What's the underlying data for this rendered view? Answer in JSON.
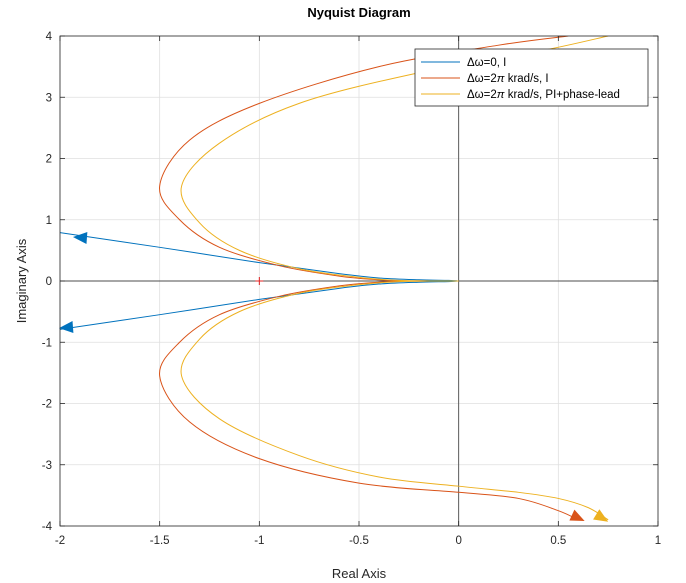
{
  "chart_data": {
    "type": "line",
    "title": "Nyquist Diagram",
    "xlabel": "Real Axis",
    "ylabel": "Imaginary Axis",
    "xlim": [
      -2,
      1
    ],
    "ylim": [
      -4,
      4
    ],
    "grid": true,
    "legend_position": "top-right",
    "x_ticks": [
      "-2",
      "-1.5",
      "-1",
      "-0.5",
      "0",
      "0.5",
      "1"
    ],
    "y_ticks": [
      "-4",
      "-3",
      "-2",
      "-1",
      "0",
      "1",
      "2",
      "3",
      "4"
    ],
    "critical_point": [
      -1,
      0
    ],
    "series": [
      {
        "name_prefix": "Δω=0, I",
        "name_suffix": "",
        "color": "#0072BD",
        "points": [
          [
            -2.0,
            0.79
          ],
          [
            -1.5,
            0.55
          ],
          [
            -1.0,
            0.3
          ],
          [
            -0.6,
            0.12
          ],
          [
            -0.4,
            0.05
          ],
          [
            -0.2,
            0.02
          ],
          [
            -0.05,
            0.01
          ],
          [
            0,
            0
          ],
          [
            -0.05,
            -0.01
          ],
          [
            -0.2,
            -0.02
          ],
          [
            -0.4,
            -0.05
          ],
          [
            -0.6,
            -0.12
          ],
          [
            -1.0,
            -0.3
          ],
          [
            -1.5,
            -0.55
          ],
          [
            -2.0,
            -0.79
          ]
        ],
        "arrows": [
          [
            -1.9,
            0.71
          ],
          [
            -1.97,
            -0.76
          ]
        ]
      },
      {
        "name_prefix": "Δω=2",
        "name_suffix": " krad/s, I",
        "color": "#D95319",
        "points": [
          [
            0.55,
            4.0
          ],
          [
            0.2,
            3.85
          ],
          [
            -0.4,
            3.5
          ],
          [
            -1.0,
            2.9
          ],
          [
            -1.35,
            2.3
          ],
          [
            -1.5,
            1.55
          ],
          [
            -1.4,
            1.0
          ],
          [
            -1.2,
            0.55
          ],
          [
            -0.9,
            0.25
          ],
          [
            -0.6,
            0.08
          ],
          [
            -0.4,
            0.02
          ],
          [
            -0.25,
            0.0
          ],
          [
            -0.1,
            0.0
          ],
          [
            0,
            0
          ],
          [
            -0.1,
            0.0
          ],
          [
            -0.25,
            0.0
          ],
          [
            -0.4,
            -0.02
          ],
          [
            -0.6,
            -0.08
          ],
          [
            -0.9,
            -0.25
          ],
          [
            -1.2,
            -0.55
          ],
          [
            -1.4,
            -1.0
          ],
          [
            -1.5,
            -1.55
          ],
          [
            -1.35,
            -2.3
          ],
          [
            -1.0,
            -2.9
          ],
          [
            -0.5,
            -3.3
          ],
          [
            0.0,
            -3.45
          ],
          [
            0.3,
            -3.55
          ],
          [
            0.5,
            -3.75
          ],
          [
            0.6,
            -3.9
          ]
        ],
        "arrows": [
          [
            0.6,
            -3.87
          ]
        ]
      },
      {
        "name_prefix": "Δω=2",
        "name_suffix": " krad/s, PI+phase-lead",
        "color": "#EDB120",
        "points": [
          [
            0.75,
            4.0
          ],
          [
            0.4,
            3.75
          ],
          [
            -0.2,
            3.4
          ],
          [
            -0.8,
            2.9
          ],
          [
            -1.2,
            2.25
          ],
          [
            -1.39,
            1.55
          ],
          [
            -1.3,
            0.95
          ],
          [
            -1.1,
            0.5
          ],
          [
            -0.8,
            0.2
          ],
          [
            -0.5,
            0.06
          ],
          [
            -0.3,
            0.01
          ],
          [
            -0.1,
            0.0
          ],
          [
            0,
            0
          ],
          [
            -0.1,
            0.0
          ],
          [
            -0.3,
            -0.01
          ],
          [
            -0.5,
            -0.06
          ],
          [
            -0.8,
            -0.2
          ],
          [
            -1.1,
            -0.5
          ],
          [
            -1.3,
            -0.95
          ],
          [
            -1.39,
            -1.55
          ],
          [
            -1.2,
            -2.25
          ],
          [
            -0.8,
            -2.85
          ],
          [
            -0.4,
            -3.2
          ],
          [
            0.0,
            -3.35
          ],
          [
            0.3,
            -3.45
          ],
          [
            0.5,
            -3.55
          ],
          [
            0.65,
            -3.7
          ],
          [
            0.75,
            -3.9
          ]
        ],
        "arrows": [
          [
            0.72,
            -3.87
          ]
        ]
      }
    ]
  }
}
